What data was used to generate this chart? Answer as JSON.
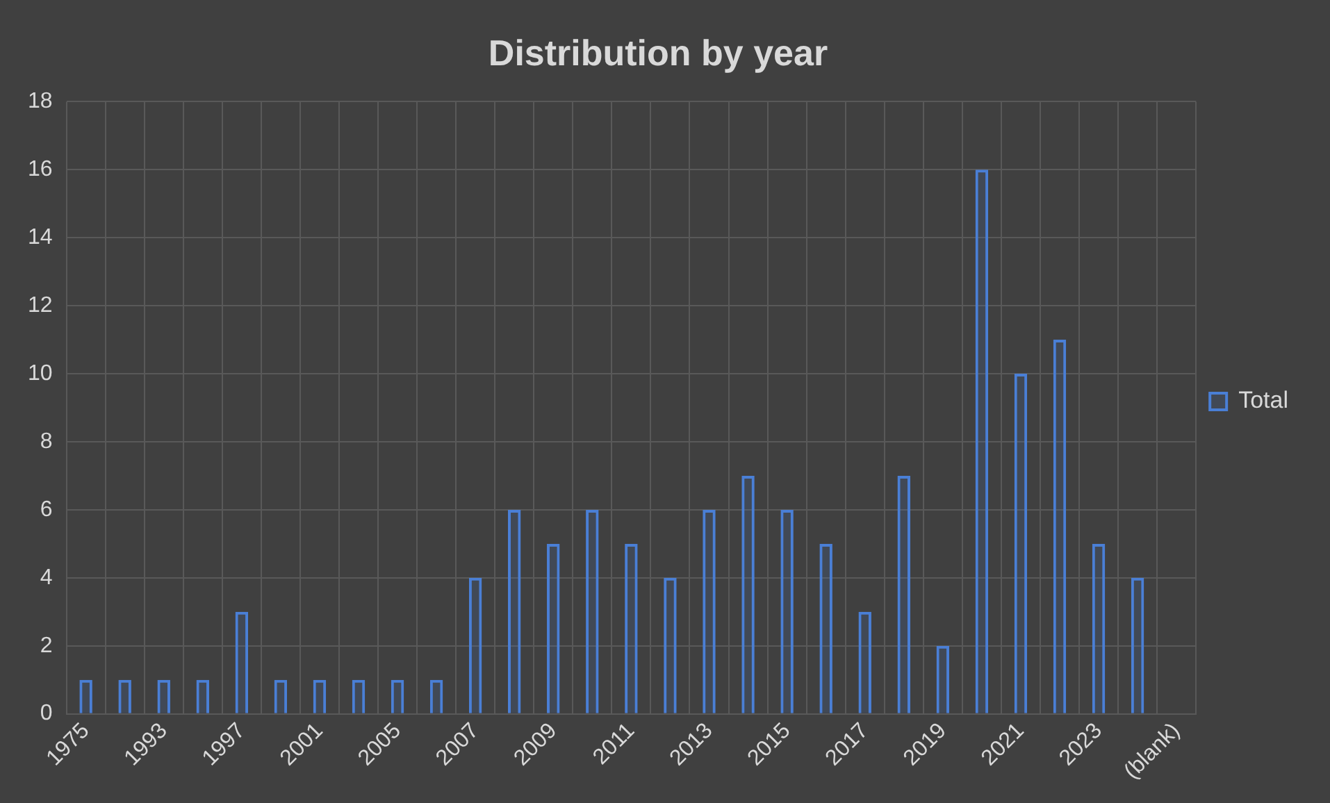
{
  "chart_data": {
    "type": "bar",
    "title": "Distribution by year",
    "categories": [
      "1975",
      null,
      "1993",
      null,
      "1997",
      null,
      "2001",
      null,
      "2005",
      null,
      "2007",
      null,
      "2009",
      null,
      "2011",
      null,
      "2013",
      null,
      "2015",
      null,
      "2017",
      null,
      "2019",
      null,
      "2021",
      null,
      "2023",
      null,
      "(blank)"
    ],
    "series": [
      {
        "name": "Total",
        "color": "#4a7fd6",
        "values": [
          1,
          1,
          1,
          1,
          3,
          1,
          1,
          1,
          1,
          1,
          4,
          6,
          5,
          6,
          5,
          4,
          6,
          7,
          6,
          5,
          3,
          7,
          2,
          16,
          10,
          11,
          5,
          4,
          null
        ]
      }
    ],
    "ylim": [
      0,
      18
    ],
    "yticks": [
      0,
      2,
      4,
      6,
      8,
      10,
      12,
      14,
      16,
      18
    ],
    "grid": true,
    "legend": "right"
  }
}
